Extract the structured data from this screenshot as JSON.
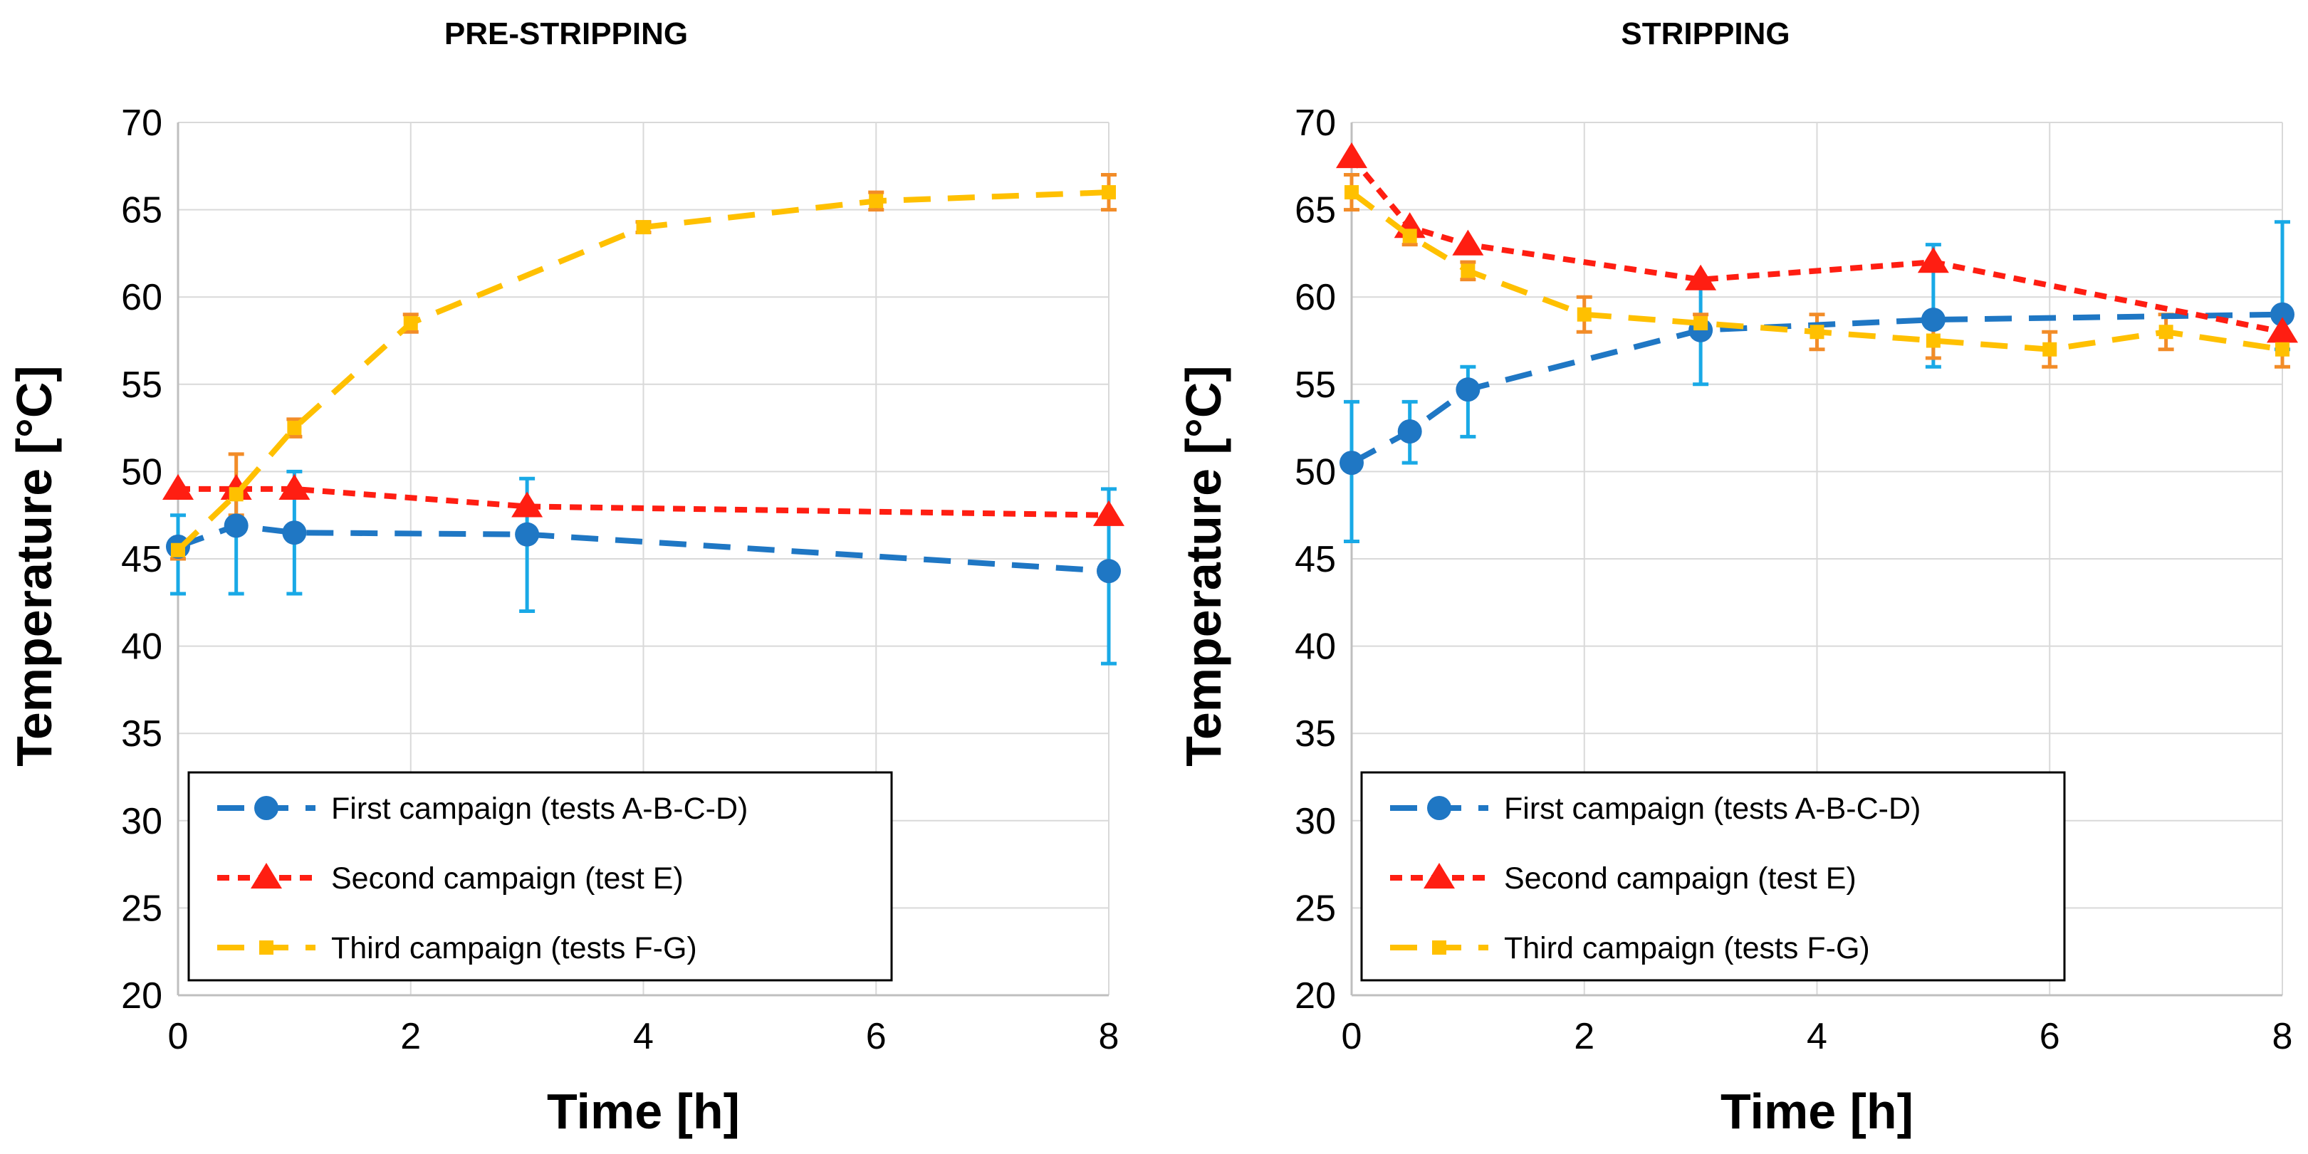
{
  "chart_data": [
    {
      "type": "line",
      "title": "PRE-STRIPPING",
      "xlabel": "Time [h]",
      "ylabel": "Temperature [°C]",
      "xlim": [
        0,
        8
      ],
      "ylim": [
        20,
        70
      ],
      "xticks": [
        0,
        2,
        4,
        6,
        8
      ],
      "yticks": [
        20,
        25,
        30,
        35,
        40,
        45,
        50,
        55,
        60,
        65,
        70
      ],
      "grid": true,
      "legend_position": "bottom-left",
      "series": [
        {
          "name": "First campaign (tests A-B-C-D)",
          "color": "#1f77c4",
          "marker": "circle",
          "dash": "long",
          "errorbar_color": "#19a9e6",
          "x": [
            0,
            0.5,
            1,
            3,
            8
          ],
          "y": [
            45.7,
            46.9,
            46.5,
            46.4,
            44.3
          ],
          "err_low": [
            2.7,
            3.9,
            3.5,
            4.4,
            5.3
          ],
          "err_high": [
            1.8,
            1.6,
            3.5,
            3.2,
            4.7
          ]
        },
        {
          "name": "Second campaign (test E)",
          "color": "#ff1e12",
          "marker": "triangle",
          "dash": "short",
          "x": [
            0,
            0.5,
            1,
            3,
            8
          ],
          "y": [
            49,
            49,
            49,
            48,
            47.5
          ]
        },
        {
          "name": "Third campaign (tests F-G)",
          "color": "#ffc000",
          "marker": "square",
          "dash": "long",
          "errorbar_color": "#f28c28",
          "x": [
            0,
            0.5,
            1,
            2,
            4,
            6,
            8
          ],
          "y": [
            45.5,
            48.7,
            52.5,
            58.5,
            64,
            65.5,
            66
          ],
          "err_low": [
            0.5,
            1.2,
            0.5,
            0.5,
            0.3,
            0.5,
            1
          ],
          "err_high": [
            0.5,
            2.3,
            0.5,
            0.5,
            0.3,
            0.5,
            1
          ]
        }
      ]
    },
    {
      "type": "line",
      "title": "STRIPPING",
      "xlabel": "Time [h]",
      "ylabel": "Temperature [°C]",
      "xlim": [
        0,
        8
      ],
      "ylim": [
        20,
        70
      ],
      "xticks": [
        0,
        2,
        4,
        6,
        8
      ],
      "yticks": [
        20,
        25,
        30,
        35,
        40,
        45,
        50,
        55,
        60,
        65,
        70
      ],
      "grid": true,
      "legend_position": "bottom-left",
      "series": [
        {
          "name": "First campaign (tests A-B-C-D)",
          "color": "#1f77c4",
          "marker": "circle",
          "dash": "long",
          "errorbar_color": "#19a9e6",
          "x": [
            0,
            0.5,
            1,
            3,
            5,
            8
          ],
          "y": [
            50.5,
            52.3,
            54.7,
            58.1,
            58.7,
            59
          ],
          "err_low": [
            4.5,
            1.8,
            2.7,
            3.1,
            2.7,
            2
          ],
          "err_high": [
            3.5,
            1.7,
            1.3,
            2.4,
            4.3,
            5.3
          ]
        },
        {
          "name": "Second campaign (test E)",
          "color": "#ff1e12",
          "marker": "triangle",
          "dash": "short",
          "x": [
            0,
            0.5,
            1,
            3,
            5,
            8
          ],
          "y": [
            68,
            64,
            63,
            61,
            62,
            58
          ]
        },
        {
          "name": "Third campaign (tests F-G)",
          "color": "#ffc000",
          "marker": "square",
          "dash": "long",
          "errorbar_color": "#f28c28",
          "x": [
            0,
            0.5,
            1,
            2,
            3,
            4,
            5,
            6,
            7,
            8
          ],
          "y": [
            66,
            63.5,
            61.5,
            59,
            58.5,
            58,
            57.5,
            57,
            58,
            57
          ],
          "err_low": [
            1,
            0.5,
            0.5,
            1,
            0.5,
            1,
            1,
            1,
            1,
            1
          ],
          "err_high": [
            1,
            0.5,
            0.5,
            1,
            0.5,
            1,
            1,
            1,
            1,
            1
          ]
        }
      ]
    }
  ]
}
